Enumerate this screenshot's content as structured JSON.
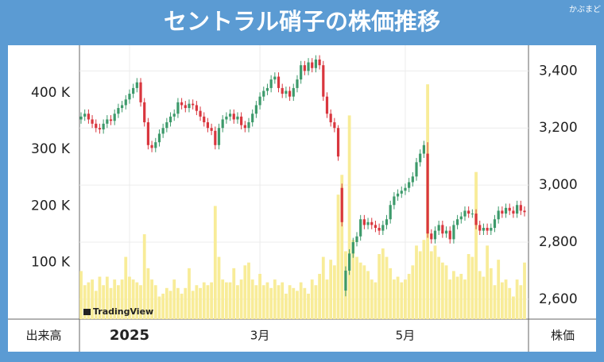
{
  "header": {
    "title": "セントラル硝子の株価推移",
    "brand": "かぶまど"
  },
  "chart_data": {
    "type": "candlestick",
    "y_label": "出来高",
    "y2_label": "株価",
    "watermark": "TradingView",
    "grid": true,
    "up_color": "#3d9a6b",
    "down_color": "#d9363e",
    "volume_color": "#f8ec98",
    "categories": [
      null,
      null,
      null,
      null,
      null,
      null,
      null,
      null,
      null,
      null,
      null,
      null,
      null,
      "2025",
      null,
      null,
      null,
      null,
      null,
      null,
      null,
      null,
      null,
      null,
      null,
      null,
      null,
      null,
      null,
      null,
      null,
      null,
      null,
      null,
      null,
      null,
      null,
      null,
      null,
      null,
      null,
      null,
      null,
      null,
      null,
      null,
      null,
      null,
      "3月",
      null,
      null,
      null,
      null,
      null,
      null,
      null,
      null,
      null,
      null,
      null,
      null,
      null,
      null,
      null,
      null,
      null,
      null,
      null,
      null,
      null,
      null,
      null,
      null,
      null,
      null,
      null,
      null,
      null,
      null,
      null,
      null,
      null,
      null,
      null,
      null,
      null,
      null,
      "5月",
      null,
      null,
      null,
      null,
      null,
      null,
      null,
      null,
      null,
      null,
      null,
      null,
      null,
      null,
      null,
      null,
      null,
      null,
      null,
      null,
      null,
      null,
      null,
      null,
      null,
      null,
      null,
      null,
      null,
      null,
      null,
      null
    ],
    "open": [
      3230,
      3240,
      3250,
      3230,
      3215,
      3200,
      3195,
      3215,
      3230,
      3225,
      3250,
      3270,
      3280,
      3300,
      3320,
      3340,
      3360,
      3290,
      3220,
      3140,
      3130,
      3150,
      3180,
      3200,
      3220,
      3240,
      3250,
      3290,
      3280,
      3270,
      3285,
      3280,
      3260,
      3240,
      3220,
      3200,
      3190,
      3140,
      3200,
      3230,
      3240,
      3250,
      3230,
      3240,
      3210,
      3200,
      3220,
      3250,
      3280,
      3310,
      3330,
      3340,
      3370,
      3380,
      3340,
      3320,
      3330,
      3310,
      3340,
      3370,
      3420,
      3400,
      3430,
      3410,
      3440,
      3420,
      3310,
      3250,
      3220,
      3200,
      2990,
      2630,
      2700,
      2760,
      2800,
      2820,
      2880,
      2860,
      2870,
      2860,
      2850,
      2840,
      2860,
      2880,
      2930,
      2960,
      2970,
      2980,
      2990,
      3010,
      3030,
      3080,
      3110,
      3110,
      2830,
      2810,
      2840,
      2860,
      2830,
      2840,
      2810,
      2860,
      2880,
      2890,
      2910,
      2900,
      2900,
      2860,
      2840,
      2850,
      2840,
      2850,
      2880,
      2910,
      2900,
      2920,
      2910,
      2900,
      2930,
      2910
    ],
    "high": [
      3255,
      3265,
      3265,
      3245,
      3230,
      3215,
      3230,
      3245,
      3245,
      3265,
      3285,
      3295,
      3315,
      3335,
      3355,
      3375,
      3375,
      3305,
      3235,
      3155,
      3165,
      3195,
      3215,
      3235,
      3255,
      3265,
      3305,
      3305,
      3295,
      3300,
      3300,
      3295,
      3275,
      3255,
      3235,
      3215,
      3205,
      3215,
      3245,
      3255,
      3265,
      3265,
      3255,
      3255,
      3225,
      3235,
      3265,
      3295,
      3325,
      3345,
      3355,
      3385,
      3395,
      3395,
      3355,
      3345,
      3345,
      3355,
      3385,
      3435,
      3435,
      3445,
      3445,
      3455,
      3455,
      3435,
      3325,
      3265,
      3235,
      3210,
      3005,
      2715,
      2775,
      2815,
      2835,
      2895,
      2895,
      2885,
      2885,
      2875,
      2865,
      2875,
      2895,
      2945,
      2975,
      2985,
      2995,
      3005,
      3025,
      3045,
      3095,
      3125,
      3155,
      3150,
      2845,
      2855,
      2875,
      2875,
      2855,
      2855,
      2875,
      2895,
      2905,
      2925,
      2925,
      2915,
      2915,
      2875,
      2865,
      2865,
      2865,
      2895,
      2925,
      2925,
      2935,
      2935,
      2925,
      2945,
      2945,
      2925
    ],
    "low": [
      3215,
      3225,
      3215,
      3200,
      3185,
      3180,
      3180,
      3200,
      3210,
      3210,
      3235,
      3255,
      3265,
      3285,
      3305,
      3325,
      3275,
      3205,
      3125,
      3115,
      3115,
      3135,
      3165,
      3185,
      3205,
      3225,
      3235,
      3265,
      3255,
      3255,
      3265,
      3245,
      3225,
      3205,
      3185,
      3175,
      3125,
      3125,
      3185,
      3215,
      3225,
      3215,
      3215,
      3195,
      3185,
      3185,
      3205,
      3235,
      3265,
      3295,
      3315,
      3325,
      3355,
      3325,
      3305,
      3305,
      3295,
      3295,
      3325,
      3355,
      3385,
      3385,
      3395,
      3395,
      3405,
      3295,
      3235,
      3205,
      3185,
      3085,
      2855,
      2610,
      2685,
      2745,
      2785,
      2805,
      2845,
      2845,
      2845,
      2835,
      2825,
      2825,
      2845,
      2865,
      2915,
      2945,
      2955,
      2965,
      2975,
      2995,
      3015,
      3065,
      3095,
      2815,
      2795,
      2795,
      2825,
      2815,
      2815,
      2795,
      2795,
      2845,
      2865,
      2875,
      2885,
      2885,
      2845,
      2825,
      2825,
      2825,
      2825,
      2835,
      2865,
      2885,
      2885,
      2895,
      2885,
      2885,
      2895,
      2890
    ],
    "close": [
      3240,
      3250,
      3230,
      3215,
      3200,
      3195,
      3215,
      3230,
      3225,
      3250,
      3270,
      3280,
      3300,
      3320,
      3340,
      3360,
      3290,
      3220,
      3140,
      3130,
      3150,
      3180,
      3200,
      3220,
      3240,
      3250,
      3290,
      3280,
      3270,
      3285,
      3280,
      3260,
      3240,
      3220,
      3200,
      3190,
      3140,
      3200,
      3230,
      3240,
      3250,
      3230,
      3240,
      3210,
      3200,
      3220,
      3250,
      3280,
      3310,
      3330,
      3340,
      3370,
      3380,
      3340,
      3320,
      3330,
      3310,
      3340,
      3370,
      3420,
      3400,
      3430,
      3410,
      3440,
      3420,
      3310,
      3250,
      3220,
      3200,
      3100,
      2870,
      2700,
      2760,
      2800,
      2820,
      2880,
      2860,
      2870,
      2860,
      2850,
      2840,
      2860,
      2880,
      2930,
      2960,
      2970,
      2980,
      2990,
      3010,
      3030,
      3080,
      3110,
      3140,
      2830,
      2810,
      2840,
      2860,
      2830,
      2840,
      2810,
      2860,
      2880,
      2890,
      2910,
      2900,
      2900,
      2860,
      2840,
      2850,
      2840,
      2850,
      2880,
      2910,
      2900,
      2920,
      2910,
      2900,
      2930,
      2910,
      2905
    ],
    "volume": [
      85000,
      60000,
      65000,
      70000,
      50000,
      75000,
      60000,
      75000,
      55000,
      70000,
      60000,
      70000,
      110000,
      75000,
      70000,
      65000,
      60000,
      150000,
      90000,
      70000,
      60000,
      40000,
      45000,
      55000,
      50000,
      70000,
      55000,
      45000,
      55000,
      90000,
      50000,
      60000,
      55000,
      65000,
      60000,
      65000,
      200000,
      110000,
      70000,
      65000,
      65000,
      90000,
      60000,
      70000,
      95000,
      100000,
      70000,
      60000,
      80000,
      60000,
      65000,
      55000,
      70000,
      60000,
      65000,
      45000,
      60000,
      55000,
      50000,
      65000,
      55000,
      45000,
      70000,
      60000,
      80000,
      110000,
      70000,
      105000,
      95000,
      220000,
      255000,
      120000,
      360000,
      140000,
      110000,
      100000,
      95000,
      85000,
      70000,
      65000,
      115000,
      125000,
      110000,
      90000,
      70000,
      75000,
      65000,
      70000,
      80000,
      95000,
      130000,
      120000,
      140000,
      415000,
      120000,
      130000,
      110000,
      100000,
      95000,
      70000,
      85000,
      75000,
      80000,
      70000,
      115000,
      110000,
      260000,
      85000,
      75000,
      130000,
      90000,
      60000,
      105000,
      65000,
      70000,
      55000,
      40000,
      70000,
      60000,
      100000
    ],
    "ylim": [
      0,
      484000
    ],
    "yticks": [
      {
        "value": 100000,
        "label": "100 K"
      },
      {
        "value": 200000,
        "label": "200 K"
      },
      {
        "value": 300000,
        "label": "300 K"
      },
      {
        "value": 400000,
        "label": "400 K"
      }
    ],
    "y2lim": [
      2530,
      3490
    ],
    "y2ticks": [
      {
        "value": 2600,
        "label": "2,600"
      },
      {
        "value": 2800,
        "label": "2,800"
      },
      {
        "value": 3000,
        "label": "3,000"
      },
      {
        "value": 3200,
        "label": "3,200"
      },
      {
        "value": 3400,
        "label": "3,400"
      }
    ]
  }
}
